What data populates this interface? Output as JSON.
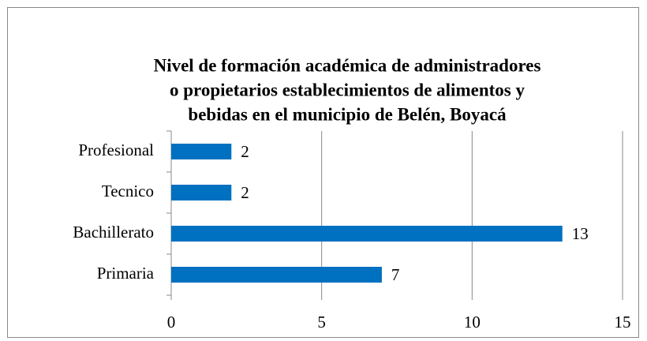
{
  "chart_data": {
    "type": "bar",
    "orientation": "horizontal",
    "title": [
      "Nivel de formación académica de administradores",
      "o propietarios establecimientos de alimentos y",
      "bebidas en el municipio de Belén, Boyacá"
    ],
    "categories": [
      "Primaria",
      "Bachillerato",
      "Tecnico",
      "Profesional"
    ],
    "values": [
      7,
      13,
      2,
      2
    ],
    "color": "#0070c0",
    "xlim": [
      0,
      15
    ],
    "xticks": [
      0,
      5,
      10,
      15
    ],
    "grid": true
  }
}
